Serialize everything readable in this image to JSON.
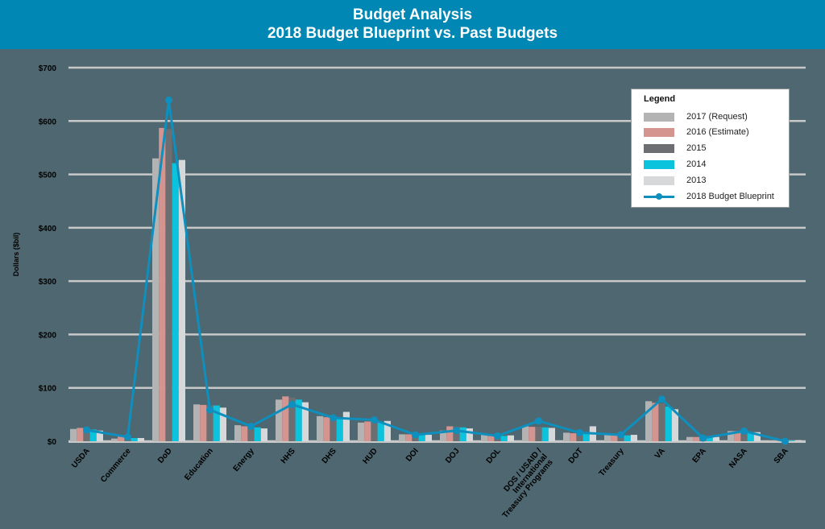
{
  "header": {
    "title": "Budget Analysis",
    "subtitle": "2018 Budget Blueprint vs. Past Budgets"
  },
  "legend": {
    "title": "Legend",
    "items": [
      {
        "label": "2017 (Request)",
        "color": "#b3b3b3"
      },
      {
        "label": "2016 (Estimate)",
        "color": "#d4948f"
      },
      {
        "label": "2015",
        "color": "#6d6e71"
      },
      {
        "label": "2014",
        "color": "#0bc3dc"
      },
      {
        "label": "2013",
        "color": "#d7d8d9"
      },
      {
        "label": "2018 Budget Blueprint",
        "color": "#0e8fbd"
      }
    ]
  },
  "colors": {
    "background": "#4e6770",
    "header": "#0087b3",
    "gridline": "#c8c8c8"
  },
  "chart_data": {
    "type": "bar",
    "title": "Budget Analysis — 2018 Budget Blueprint vs. Past Budgets",
    "xlabel": "",
    "ylabel": "Dollars ($bil)",
    "ylim": [
      0,
      700
    ],
    "yticks": [
      "$0",
      "$100",
      "$200",
      "$300",
      "$400",
      "$500",
      "$600",
      "$700"
    ],
    "grid": true,
    "legend_position": "upper right",
    "categories": [
      "USDA",
      "Commerce",
      "DoD",
      "Education",
      "Energy",
      "HHS",
      "DHS",
      "HUD",
      "DOI",
      "DOJ",
      "DOL",
      "DOS / USAID / International Treasury Programs",
      "DOT",
      "Treasury",
      "VA",
      "EPA",
      "NASA",
      "SBA"
    ],
    "series": [
      {
        "name": "2017 (Request)",
        "type": "bar",
        "values": [
          23,
          5,
          530,
          69,
          30,
          78,
          47,
          35,
          13,
          20,
          12,
          28,
          16,
          13,
          75,
          8,
          19,
          1
        ]
      },
      {
        "name": "2016 (Estimate)",
        "type": "bar",
        "values": [
          25,
          9,
          587,
          68,
          28,
          84,
          45,
          37,
          13,
          28,
          11,
          27,
          15,
          12,
          72,
          8,
          19,
          1
        ]
      },
      {
        "name": "2015",
        "type": "bar",
        "values": [
          24,
          7,
          585,
          67,
          27,
          82,
          44,
          36,
          12,
          27,
          11,
          27,
          16,
          11,
          71,
          8,
          18,
          1
        ]
      },
      {
        "name": "2014",
        "type": "bar",
        "values": [
          22,
          6,
          521,
          67,
          26,
          78,
          43,
          35,
          12,
          26,
          10,
          26,
          17,
          11,
          65,
          7,
          17,
          1
        ]
      },
      {
        "name": "2013",
        "type": "bar",
        "values": [
          20,
          6,
          527,
          63,
          24,
          73,
          55,
          38,
          12,
          24,
          11,
          25,
          28,
          12,
          60,
          8,
          17,
          2
        ]
      },
      {
        "name": "2018 Budget Blueprint",
        "type": "line",
        "values": [
          21,
          8,
          639,
          59,
          28,
          69,
          44,
          40,
          12,
          20,
          10,
          38,
          16,
          12,
          79,
          6,
          19,
          0
        ]
      }
    ]
  }
}
